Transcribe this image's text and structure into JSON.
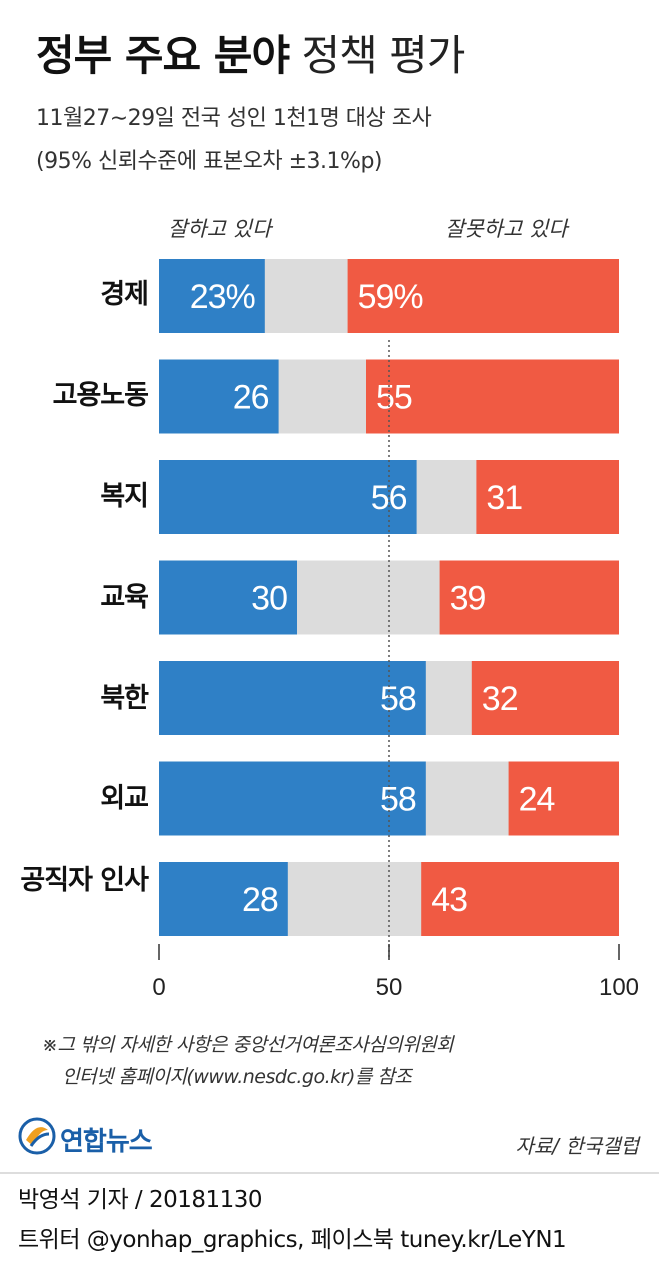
{
  "header": {
    "title_bold": "정부 주요 분야",
    "title_light": "정책 평가",
    "subtitle1": "11월27∼29일 전국 성인 1천1명 대상 조사",
    "subtitle2": "(95% 신뢰수준에 표본오차 ±3.1%p)"
  },
  "legend": {
    "positive": "잘하고 있다",
    "negative": "잘못하고 있다"
  },
  "colors": {
    "positive": "#2f80c6",
    "neutral": "#dcdcdc",
    "negative": "#f05a43"
  },
  "chart_data": {
    "type": "bar",
    "orientation": "horizontal",
    "stacked": true,
    "categories": [
      "경제",
      "고용노동",
      "복지",
      "교육",
      "북한",
      "외교",
      "공직자 인사"
    ],
    "series": [
      {
        "name": "잘하고 있다",
        "values": [
          23,
          26,
          56,
          30,
          58,
          58,
          28
        ]
      },
      {
        "name": "잘못하고 있다",
        "values": [
          59,
          55,
          31,
          39,
          32,
          24,
          43
        ]
      }
    ],
    "value_labels_positive": [
      "23%",
      "26",
      "56",
      "30",
      "58",
      "58",
      "28"
    ],
    "value_labels_negative": [
      "59%",
      "55",
      "31",
      "39",
      "32",
      "24",
      "43"
    ],
    "xlim": [
      0,
      100
    ],
    "xticks": [
      0,
      50,
      100
    ],
    "xtick_labels": [
      "0",
      "50",
      "100"
    ],
    "reference_line": 50
  },
  "footnote": {
    "line1": "※그 밖의 자세한 사항은 중앙선거여론조사심의위원회",
    "line2": "인터넷 홈페이지(www.nesdc.go.kr)를 참조"
  },
  "source": "자료/ 한국갤럽",
  "logo_text": "연합뉴스",
  "byline": {
    "line1": "박영석 기자 / 20181130",
    "line2": "트위터 @yonhap_graphics, 페이스북 tuney.kr/LeYN1"
  }
}
